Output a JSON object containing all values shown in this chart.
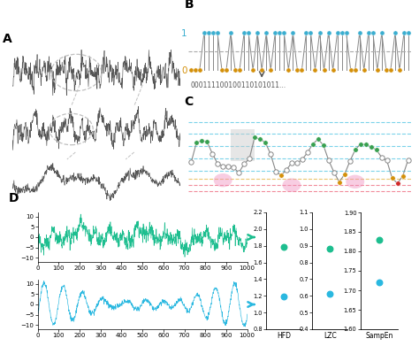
{
  "panel_label_fontsize": 10,
  "bg_color": "#ffffff",
  "eeg_color": "#555555",
  "green_color": "#1dbe8f",
  "cyan_color": "#2ab8e0",
  "blue_dot_color": "#3aaed0",
  "orange_dot_color": "#d4900a",
  "green_dot_color": "#38a050",
  "red_dot_color": "#d02828",
  "scatter_green": "#1dbe8f",
  "scatter_cyan": "#2ab8e0",
  "hfd_ylim": [
    0.8,
    2.2
  ],
  "hfd_yticks": [
    0.8,
    1.0,
    1.2,
    1.4,
    1.6,
    1.8,
    2.0,
    2.2
  ],
  "lzc_ylim": [
    0.4,
    1.1
  ],
  "lzc_yticks": [
    0.4,
    0.5,
    0.6,
    0.7,
    0.8,
    0.9,
    1.0,
    1.1
  ],
  "sampen_ylim": [
    1.6,
    1.9
  ],
  "sampen_yticks": [
    1.6,
    1.65,
    1.7,
    1.75,
    1.8,
    1.85,
    1.9
  ],
  "hfd_vals": [
    1.79,
    1.19
  ],
  "lzc_vals": [
    0.88,
    0.61
  ],
  "sampen_vals": [
    1.83,
    1.72
  ],
  "binary_text": "000111100100110101011...",
  "binary_seq": [
    0,
    0,
    0,
    1,
    1,
    1,
    1,
    0,
    0,
    1,
    0,
    0,
    1,
    1,
    0,
    1,
    0,
    1,
    0,
    1,
    1,
    1,
    0,
    1,
    0,
    0,
    1,
    1,
    0,
    1,
    0,
    1,
    0,
    1,
    1,
    1,
    0,
    0,
    1,
    0,
    1,
    1,
    0,
    1,
    0,
    0,
    1,
    0,
    1,
    1
  ]
}
